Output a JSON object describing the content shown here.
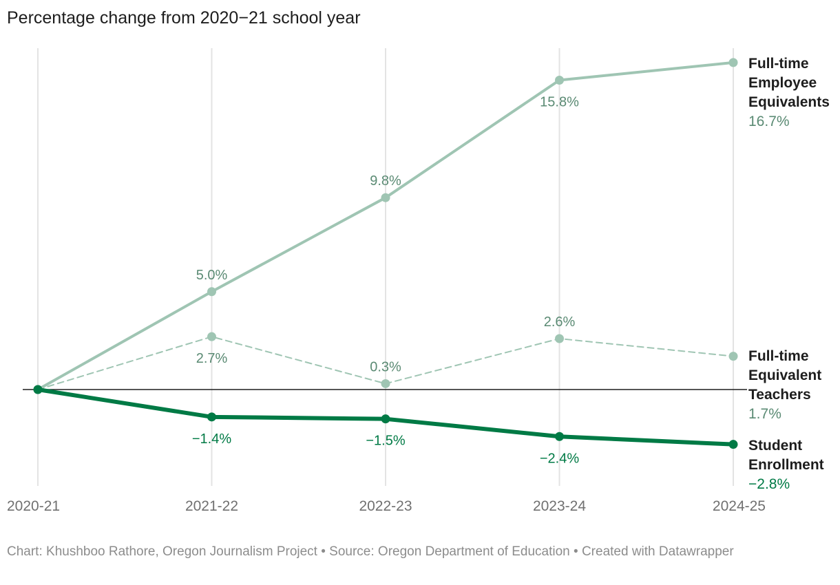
{
  "chart_data": {
    "type": "line",
    "title": "Percentage change from 2020−21 school year",
    "xlabel": "",
    "ylabel": "",
    "categories": [
      "2020-21",
      "2021-22",
      "2022-23",
      "2023-24",
      "2024-25"
    ],
    "ylim": [
      -4.5,
      17.5
    ],
    "grid": "vertical",
    "zero_line": true,
    "series": [
      {
        "name": "Full-time Employee Equivalents",
        "label_lines": [
          "Full-time",
          "Employee",
          "Equivalents"
        ],
        "values": [
          0,
          5.0,
          9.8,
          15.8,
          16.7
        ],
        "data_labels": [
          "",
          "5.0%",
          "9.8%",
          "15.8%",
          ""
        ],
        "end_label": "16.7%",
        "color": "#9fc5b3",
        "label_color": "#5a8a73",
        "style": "solid"
      },
      {
        "name": "Full-time Equivalent Teachers",
        "label_lines": [
          "Full-time",
          "Equivalent",
          "Teachers"
        ],
        "values": [
          0,
          2.7,
          0.3,
          2.6,
          1.7
        ],
        "data_labels": [
          "",
          "2.7%",
          "0.3%",
          "2.6%",
          ""
        ],
        "end_label": "1.7%",
        "color": "#9fc5b3",
        "label_color": "#5a8a73",
        "style": "dashed"
      },
      {
        "name": "Student Enrollment",
        "label_lines": [
          "Student",
          "Enrollment"
        ],
        "values": [
          0,
          -1.4,
          -1.5,
          -2.4,
          -2.8
        ],
        "data_labels": [
          "",
          "−1.4%",
          "−1.5%",
          "−2.4%",
          ""
        ],
        "end_label": "−2.8%",
        "color": "#007a45",
        "label_color": "#007a45",
        "style": "solid-thick"
      }
    ]
  },
  "footer": "Chart: Khushboo Rathore, Oregon Journalism Project • Source: Oregon Department of Education • Created with Datawrapper"
}
